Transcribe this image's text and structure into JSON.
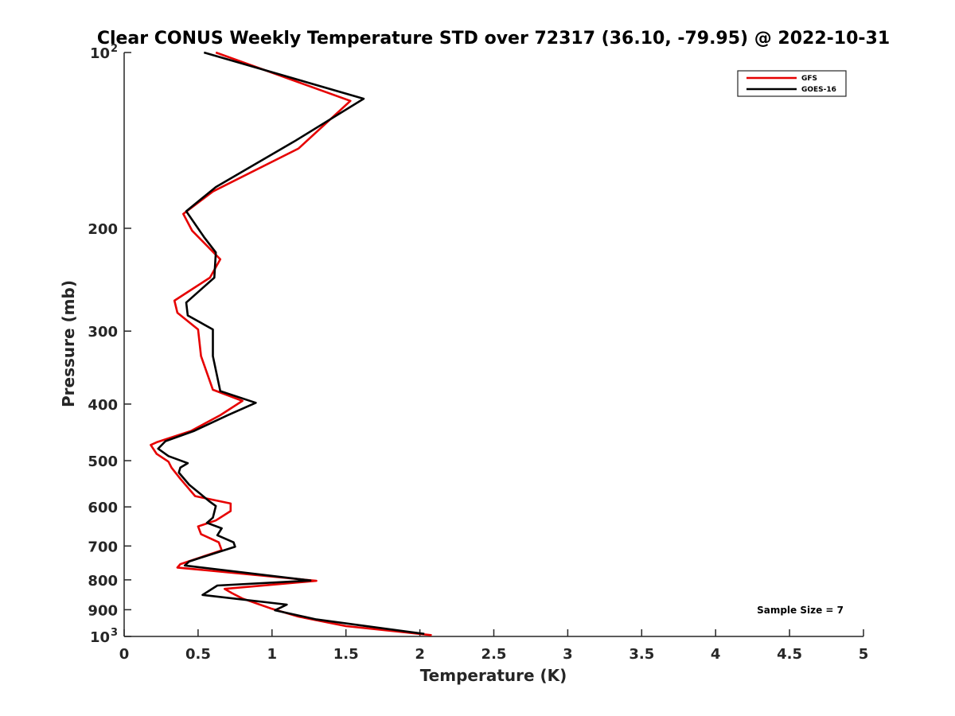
{
  "chart_data": {
    "type": "line",
    "title": "Clear CONUS Weekly Temperature STD over 72317 (36.10, -79.95) @ 2022-10-31",
    "xlabel": "Temperature (K)",
    "ylabel": "Pressure (mb)",
    "xlim": [
      0,
      5
    ],
    "ylim": [
      1000,
      100
    ],
    "y_scale": "log",
    "y_reversed": true,
    "grid": false,
    "legend_position": "top-right",
    "x_ticks": [
      "0",
      "0.5",
      "1",
      "1.5",
      "2",
      "2.5",
      "3",
      "3.5",
      "4",
      "4.5",
      "5"
    ],
    "y_ticks": [
      {
        "value": 100,
        "label": "10",
        "sup": "2"
      },
      {
        "value": 200,
        "label": "200",
        "sup": ""
      },
      {
        "value": 300,
        "label": "300",
        "sup": ""
      },
      {
        "value": 400,
        "label": "400",
        "sup": ""
      },
      {
        "value": 500,
        "label": "500",
        "sup": ""
      },
      {
        "value": 600,
        "label": "600",
        "sup": ""
      },
      {
        "value": 700,
        "label": "700",
        "sup": ""
      },
      {
        "value": 800,
        "label": "800",
        "sup": ""
      },
      {
        "value": 900,
        "label": "900",
        "sup": ""
      },
      {
        "value": 1000,
        "label": "10",
        "sup": "3"
      }
    ],
    "annotation": "Sample Size = 7",
    "series": [
      {
        "name": "GFS",
        "color": "#e60000",
        "points": [
          [
            0.62,
            100
          ],
          [
            1.53,
            121
          ],
          [
            1.18,
            146
          ],
          [
            0.6,
            173
          ],
          [
            0.4,
            189
          ],
          [
            0.46,
            202
          ],
          [
            0.65,
            226
          ],
          [
            0.58,
            243
          ],
          [
            0.34,
            266
          ],
          [
            0.36,
            279
          ],
          [
            0.5,
            298
          ],
          [
            0.52,
            331
          ],
          [
            0.6,
            378
          ],
          [
            0.8,
            395
          ],
          [
            0.65,
            418
          ],
          [
            0.45,
            445
          ],
          [
            0.22,
            465
          ],
          [
            0.18,
            470
          ],
          [
            0.22,
            487
          ],
          [
            0.3,
            502
          ],
          [
            0.32,
            514
          ],
          [
            0.38,
            537
          ],
          [
            0.48,
            575
          ],
          [
            0.72,
            592
          ],
          [
            0.72,
            610
          ],
          [
            0.62,
            633
          ],
          [
            0.5,
            648
          ],
          [
            0.52,
            668
          ],
          [
            0.64,
            690
          ],
          [
            0.66,
            712
          ],
          [
            0.38,
            752
          ],
          [
            0.36,
            762
          ],
          [
            1.3,
            803
          ],
          [
            0.68,
            829
          ],
          [
            0.73,
            843
          ],
          [
            0.8,
            861
          ],
          [
            1.0,
            897
          ],
          [
            1.18,
            925
          ],
          [
            1.5,
            960
          ],
          [
            2.08,
            995
          ]
        ]
      },
      {
        "name": "GOES-16",
        "color": "#000000",
        "points": [
          [
            0.54,
            100
          ],
          [
            1.62,
            120
          ],
          [
            1.15,
            142
          ],
          [
            0.62,
            170
          ],
          [
            0.42,
            187
          ],
          [
            0.54,
            207
          ],
          [
            0.62,
            220
          ],
          [
            0.61,
            243
          ],
          [
            0.42,
            268
          ],
          [
            0.43,
            282
          ],
          [
            0.6,
            298
          ],
          [
            0.6,
            331
          ],
          [
            0.65,
            380
          ],
          [
            0.89,
            398
          ],
          [
            0.7,
            418
          ],
          [
            0.47,
            445
          ],
          [
            0.28,
            463
          ],
          [
            0.23,
            477
          ],
          [
            0.3,
            491
          ],
          [
            0.43,
            505
          ],
          [
            0.38,
            514
          ],
          [
            0.37,
            524
          ],
          [
            0.44,
            550
          ],
          [
            0.58,
            588
          ],
          [
            0.62,
            598
          ],
          [
            0.6,
            626
          ],
          [
            0.56,
            639
          ],
          [
            0.66,
            653
          ],
          [
            0.63,
            671
          ],
          [
            0.74,
            690
          ],
          [
            0.75,
            702
          ],
          [
            0.44,
            744
          ],
          [
            0.41,
            756
          ],
          [
            1.26,
            802
          ],
          [
            0.63,
            818
          ],
          [
            0.53,
            849
          ],
          [
            1.1,
            882
          ],
          [
            1.02,
            902
          ],
          [
            1.3,
            935
          ],
          [
            2.03,
            990
          ]
        ]
      }
    ]
  }
}
